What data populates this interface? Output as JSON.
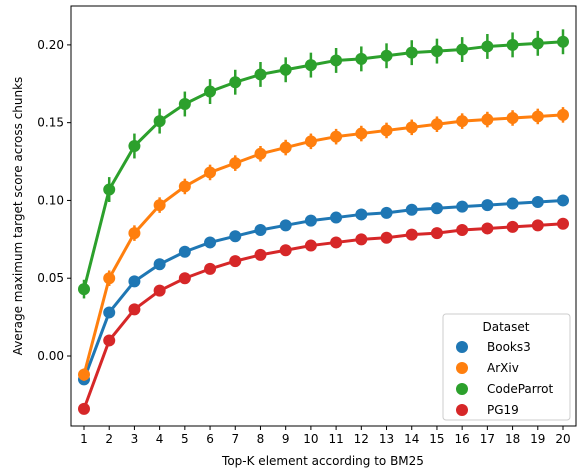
{
  "chart_data": {
    "type": "line",
    "xlabel": "Top-K element according to BM25",
    "ylabel": "Average maximum target score across chunks",
    "x": [
      1,
      2,
      3,
      4,
      5,
      6,
      7,
      8,
      9,
      10,
      11,
      12,
      13,
      14,
      15,
      16,
      17,
      18,
      19,
      20
    ],
    "x_tick_labels": [
      "1",
      "2",
      "3",
      "4",
      "5",
      "6",
      "7",
      "8",
      "9",
      "10",
      "11",
      "12",
      "13",
      "14",
      "15",
      "16",
      "17",
      "18",
      "19",
      "20"
    ],
    "ylim": [
      -0.045,
      0.225
    ],
    "y_ticks": [
      0.0,
      0.05,
      0.1,
      0.15,
      0.2
    ],
    "y_tick_labels": [
      "0.00",
      "0.05",
      "0.10",
      "0.15",
      "0.20"
    ],
    "grid": false,
    "legend": {
      "title": "Dataset",
      "placement": "lower-right"
    },
    "series": [
      {
        "name": "Books3",
        "color": "#1f77b4",
        "values": [
          -0.015,
          0.028,
          0.048,
          0.059,
          0.067,
          0.073,
          0.077,
          0.081,
          0.084,
          0.087,
          0.089,
          0.091,
          0.092,
          0.094,
          0.095,
          0.096,
          0.097,
          0.098,
          0.099,
          0.1
        ],
        "error": [
          0.002,
          0.002,
          0.002,
          0.002,
          0.002,
          0.002,
          0.002,
          0.002,
          0.002,
          0.002,
          0.002,
          0.002,
          0.002,
          0.002,
          0.002,
          0.002,
          0.002,
          0.002,
          0.002,
          0.002
        ]
      },
      {
        "name": "ArXiv",
        "color": "#ff7f0e",
        "values": [
          -0.012,
          0.05,
          0.079,
          0.097,
          0.109,
          0.118,
          0.124,
          0.13,
          0.134,
          0.138,
          0.141,
          0.143,
          0.145,
          0.147,
          0.149,
          0.151,
          0.152,
          0.153,
          0.154,
          0.155
        ],
        "error": [
          0.004,
          0.005,
          0.005,
          0.005,
          0.005,
          0.005,
          0.005,
          0.005,
          0.005,
          0.005,
          0.005,
          0.005,
          0.005,
          0.005,
          0.005,
          0.005,
          0.005,
          0.005,
          0.005,
          0.005
        ]
      },
      {
        "name": "CodeParrot",
        "color": "#2ca02c",
        "values": [
          0.043,
          0.107,
          0.135,
          0.151,
          0.162,
          0.17,
          0.176,
          0.181,
          0.184,
          0.187,
          0.19,
          0.191,
          0.193,
          0.195,
          0.196,
          0.197,
          0.199,
          0.2,
          0.201,
          0.202
        ],
        "error": [
          0.006,
          0.008,
          0.008,
          0.008,
          0.008,
          0.008,
          0.008,
          0.008,
          0.008,
          0.008,
          0.008,
          0.008,
          0.008,
          0.008,
          0.008,
          0.008,
          0.008,
          0.008,
          0.008,
          0.008
        ]
      },
      {
        "name": "PG19",
        "color": "#d62728",
        "values": [
          -0.034,
          0.01,
          0.03,
          0.042,
          0.05,
          0.056,
          0.061,
          0.065,
          0.068,
          0.071,
          0.073,
          0.075,
          0.076,
          0.078,
          0.079,
          0.081,
          0.082,
          0.083,
          0.084,
          0.085
        ],
        "error": [
          0.002,
          0.002,
          0.002,
          0.002,
          0.002,
          0.002,
          0.002,
          0.002,
          0.002,
          0.002,
          0.002,
          0.002,
          0.002,
          0.002,
          0.002,
          0.002,
          0.002,
          0.002,
          0.002,
          0.002
        ]
      }
    ]
  }
}
